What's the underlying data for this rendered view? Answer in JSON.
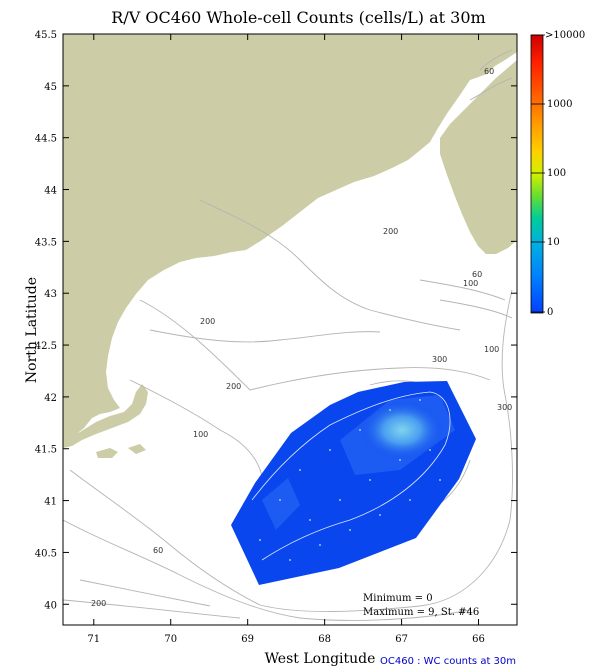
{
  "title": "R/V OC460 Whole-cell Counts (cells/L) at 30m",
  "x_axis": {
    "label": "West Longitude",
    "ticks": [
      "71",
      "70",
      "69",
      "68",
      "67",
      "66"
    ],
    "range": [
      71.4,
      65.5
    ]
  },
  "y_axis": {
    "label": "North Latitude",
    "ticks": [
      "45.5",
      "45",
      "44.5",
      "44",
      "43.5",
      "43",
      "42.5",
      "42",
      "41.5",
      "41",
      "40.5",
      "40"
    ],
    "range": [
      39.8,
      45.5
    ]
  },
  "colorbar": {
    "labels": [
      ">10000",
      "1000",
      "100",
      "10",
      "0"
    ],
    "colors": [
      "#cc0000",
      "#ff1a00",
      "#ff5a00",
      "#ff9900",
      "#ffcc00",
      "#e8f000",
      "#9be000",
      "#33cc33",
      "#00cc99",
      "#00b5d8",
      "#0096ff",
      "#006aff",
      "#0040ff"
    ]
  },
  "depth_labels": [
    "60",
    "60",
    "200",
    "200",
    "200",
    "300",
    "100",
    "300",
    "100",
    "100",
    "60",
    "200"
  ],
  "stats": {
    "minimum": "Minimum = 0",
    "maximum": "Maximum = 9, St. #46"
  },
  "caption": "OC460 : WC counts at 30m",
  "colors": {
    "land": "#cccca6",
    "survey_field": "#0a46ee",
    "survey_high": "#5aaee6",
    "contour": "#b4b4b4"
  }
}
